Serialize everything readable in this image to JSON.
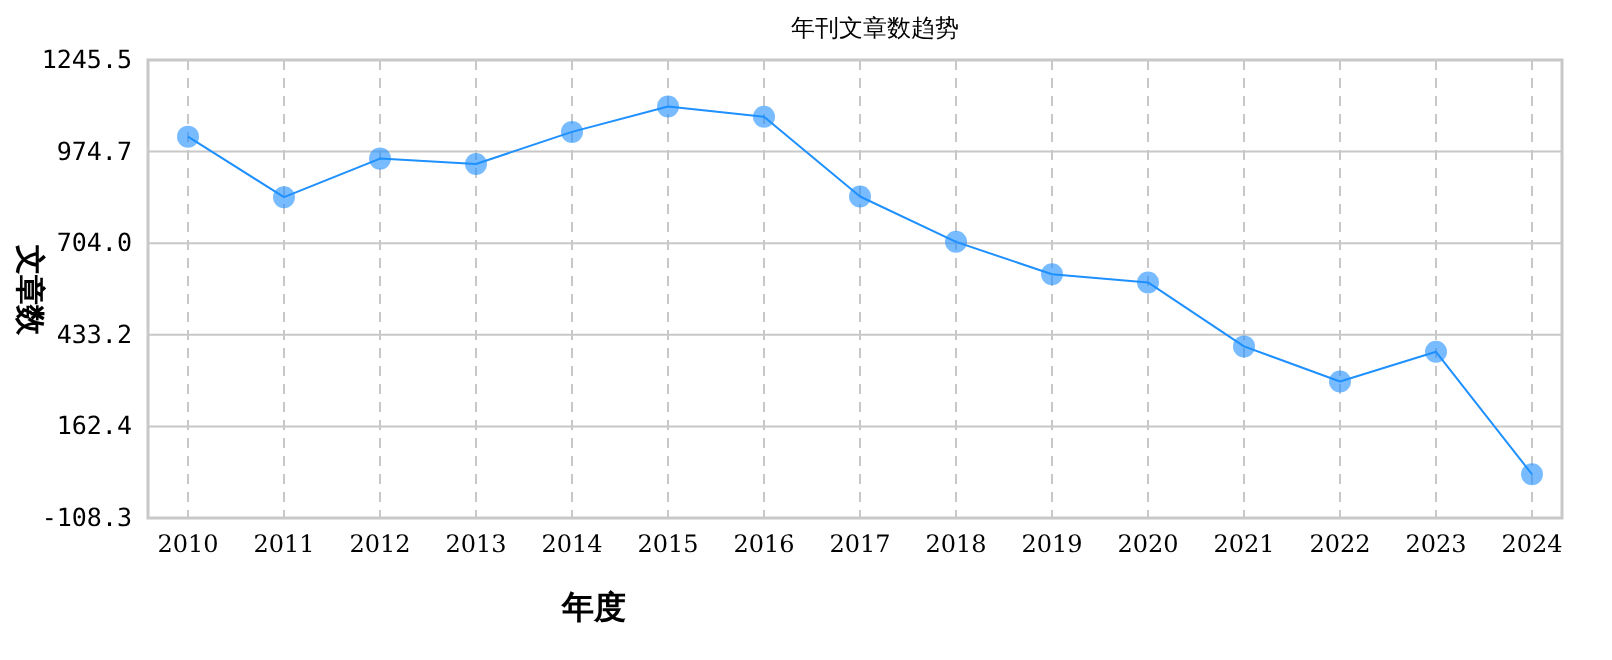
{
  "chart_data": {
    "type": "line",
    "title": "年刊文章数趋势",
    "xlabel": "年度",
    "ylabel": "文章数",
    "categories": [
      "2010",
      "2011",
      "2012",
      "2013",
      "2014",
      "2015",
      "2016",
      "2017",
      "2018",
      "2019",
      "2020",
      "2021",
      "2022",
      "2023",
      "2024"
    ],
    "series": [
      {
        "color": "#1e90ff",
        "values": [
          1019,
          840,
          954,
          938,
          1033,
          1108,
          1078,
          842,
          708,
          612,
          588,
          399,
          295,
          383,
          21
        ]
      }
    ],
    "ylim": [
      -108.3,
      1245.5
    ],
    "yticks": [
      -108.3,
      162.4,
      433.2,
      {
        "value": 704.0,
        "label": "704.0"
      },
      974.7,
      1245.5
    ],
    "grid": true,
    "marker": "circle",
    "line_style": "solid"
  }
}
